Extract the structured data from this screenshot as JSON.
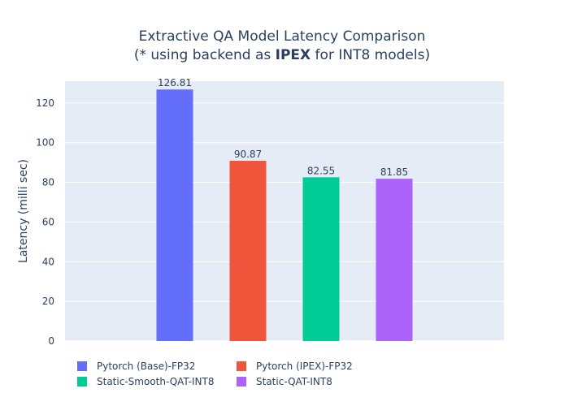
{
  "chart_data": {
    "type": "bar",
    "title_line1": "Extractive QA Model Latency Comparison",
    "title_line2_prefix": "(* using backend as ",
    "title_line2_bold": "IPEX",
    "title_line2_suffix": " for INT8 models)",
    "xlabel": "",
    "ylabel": "Latency (milli sec)",
    "ylim": [
      0,
      131
    ],
    "yticks": [
      0,
      20,
      40,
      60,
      80,
      100,
      120
    ],
    "grid": true,
    "legend_position": "bottom",
    "series": [
      {
        "name": "Pytorch (Base)-FP32",
        "values": [
          126.81
        ],
        "label": "126.81",
        "color": "#636efa"
      },
      {
        "name": "Pytorch (IPEX)-FP32",
        "values": [
          90.87
        ],
        "label": "90.87",
        "color": "#ef553b"
      },
      {
        "name": "Static-Smooth-QAT-INT8",
        "values": [
          82.55
        ],
        "label": "82.55",
        "color": "#00cc96"
      },
      {
        "name": "Static-QAT-INT8",
        "values": [
          81.85
        ],
        "label": "81.85",
        "color": "#ab63fa"
      }
    ],
    "plot_background": "#e5ecf6",
    "gridline_color": "#ffffff"
  }
}
